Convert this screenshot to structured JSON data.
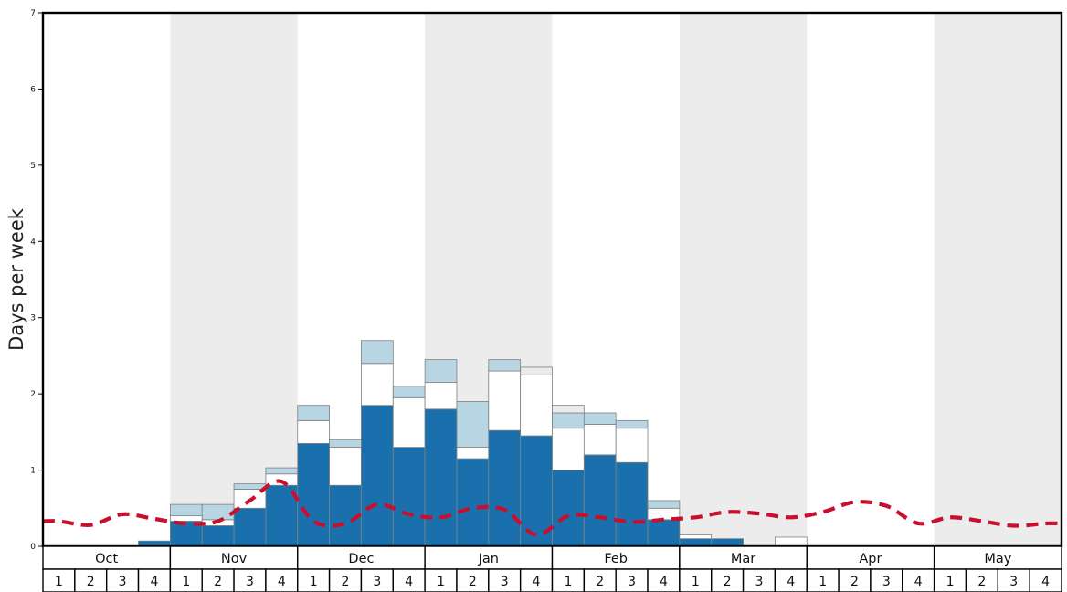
{
  "chart_data": {
    "type": "bar",
    "title": "",
    "ylabel": "Days per week",
    "ylim": [
      0,
      7
    ],
    "yticks": [
      0,
      1,
      2,
      3,
      4,
      5,
      6,
      7
    ],
    "months": [
      "Oct",
      "Nov",
      "Dec",
      "Jan",
      "Feb",
      "Mar",
      "Apr",
      "May"
    ],
    "weeks_per_month": [
      1,
      2,
      3,
      4
    ],
    "shaded_months": [
      "Nov",
      "Jan",
      "Mar",
      "May"
    ],
    "grid": false,
    "legend": "none",
    "series": [
      {
        "name": "dark-blue-days",
        "color": "#1a70ad",
        "values": [
          0,
          0,
          0,
          0.07,
          0.33,
          0.27,
          0.5,
          0.8,
          1.35,
          0.8,
          1.85,
          1.3,
          1.8,
          1.15,
          1.52,
          1.45,
          1.0,
          1.2,
          1.1,
          0.35,
          0.1,
          0.1,
          0,
          0,
          0,
          0,
          0,
          0,
          0,
          0,
          0,
          0
        ]
      },
      {
        "name": "white-days",
        "color": "#ffffff",
        "values": [
          0,
          0,
          0,
          0,
          0.07,
          0.08,
          0.25,
          0.15,
          0.3,
          0.5,
          0.55,
          0.65,
          0.35,
          0.15,
          0.78,
          0.8,
          0.55,
          0.4,
          0.45,
          0.15,
          0.05,
          0,
          0,
          0.12,
          0,
          0,
          0,
          0,
          0,
          0,
          0,
          0
        ]
      },
      {
        "name": "light-blue-days",
        "color": "#b7d5e2",
        "values": [
          0,
          0,
          0,
          0,
          0.15,
          0.2,
          0.07,
          0.08,
          0.2,
          0.1,
          0.3,
          0.15,
          0.3,
          0.6,
          0.15,
          0,
          0.2,
          0.15,
          0.1,
          0.1,
          0,
          0,
          0,
          0,
          0,
          0,
          0,
          0,
          0,
          0,
          0,
          0
        ]
      },
      {
        "name": "grey-days",
        "color": "#ebebeb",
        "values": [
          0,
          0,
          0,
          0,
          0,
          0,
          0,
          0,
          0,
          0,
          0,
          0,
          0,
          0,
          0,
          0.1,
          0.1,
          0,
          0,
          0,
          0,
          0,
          0,
          0,
          0,
          0,
          0,
          0,
          0,
          0,
          0,
          0
        ]
      }
    ],
    "line": {
      "name": "average-dashed-line",
      "color": "#c8102e",
      "style": "dashed",
      "values": [
        0.33,
        0.28,
        0.42,
        0.36,
        0.3,
        0.33,
        0.6,
        0.85,
        0.33,
        0.3,
        0.55,
        0.42,
        0.38,
        0.5,
        0.48,
        0.15,
        0.4,
        0.38,
        0.32,
        0.35,
        0.38,
        0.45,
        0.43,
        0.38,
        0.45,
        0.58,
        0.53,
        0.3,
        0.38,
        0.33,
        0.27,
        0.3
      ]
    },
    "colors": {
      "band": "#ececec",
      "bar_border": "#808080",
      "frame": "#000000",
      "background": "#ffffff"
    }
  }
}
